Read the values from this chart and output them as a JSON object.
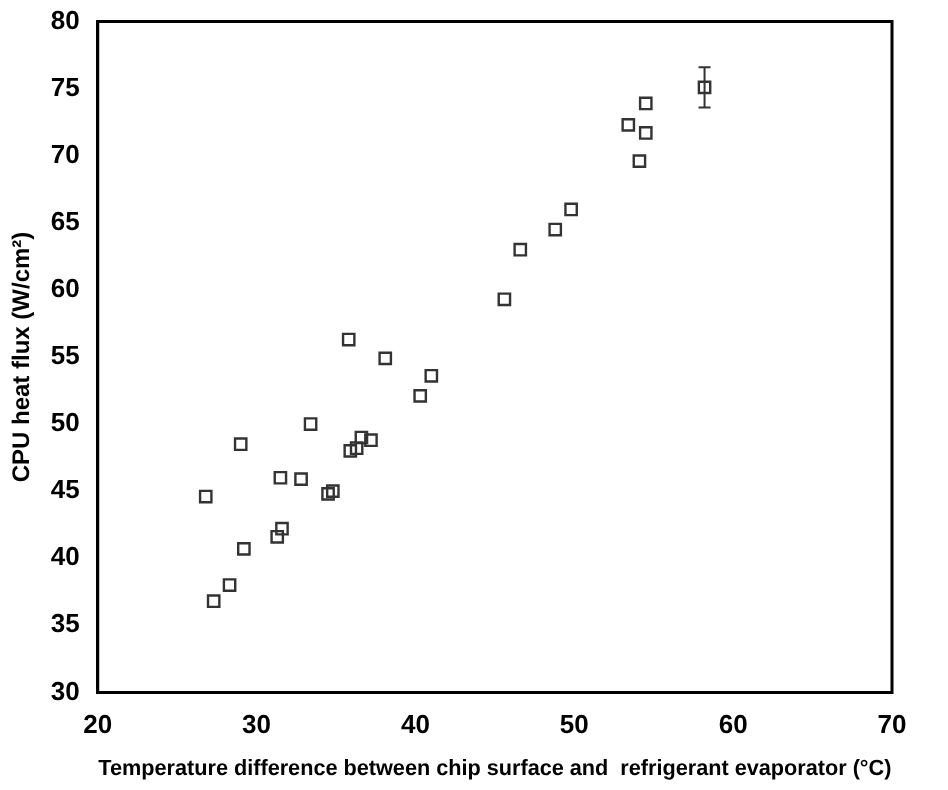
{
  "chart_data": {
    "type": "scatter",
    "xlabel": "Temperature difference between chip surface and  refrigerant evaporator (°C)",
    "ylabel": "CPU heat flux (W/cm²)",
    "x": [
      26.8,
      27.3,
      28.3,
      29.0,
      29.2,
      31.3,
      31.6,
      31.5,
      32.8,
      33.4,
      34.5,
      34.8,
      35.8,
      35.9,
      36.3,
      36.6,
      37.2,
      38.1,
      40.3,
      41.0,
      45.6,
      46.6,
      48.8,
      49.8,
      53.4,
      54.1,
      54.5,
      54.5,
      58.2
    ],
    "values": [
      44.6,
      36.8,
      38.0,
      48.5,
      40.7,
      41.6,
      42.2,
      46.0,
      45.9,
      50.0,
      44.8,
      45.0,
      56.3,
      48.0,
      48.2,
      49.0,
      48.8,
      54.9,
      52.1,
      53.6,
      59.3,
      63.0,
      64.5,
      66.0,
      72.3,
      69.6,
      71.7,
      73.9,
      75.1
    ],
    "errors": [
      null,
      null,
      null,
      null,
      null,
      null,
      null,
      null,
      null,
      null,
      null,
      null,
      null,
      null,
      null,
      null,
      null,
      null,
      null,
      null,
      null,
      null,
      null,
      null,
      null,
      null,
      null,
      null,
      1.5
    ],
    "color": "#333333",
    "marker": "square",
    "xlim": [
      20,
      70
    ],
    "xticks": [
      20,
      30,
      40,
      50,
      60,
      70
    ],
    "ylim": [
      30,
      80
    ],
    "yticks": [
      30,
      35,
      40,
      45,
      50,
      55,
      60,
      65,
      70,
      75,
      80
    ],
    "grid": false,
    "legend": false
  }
}
